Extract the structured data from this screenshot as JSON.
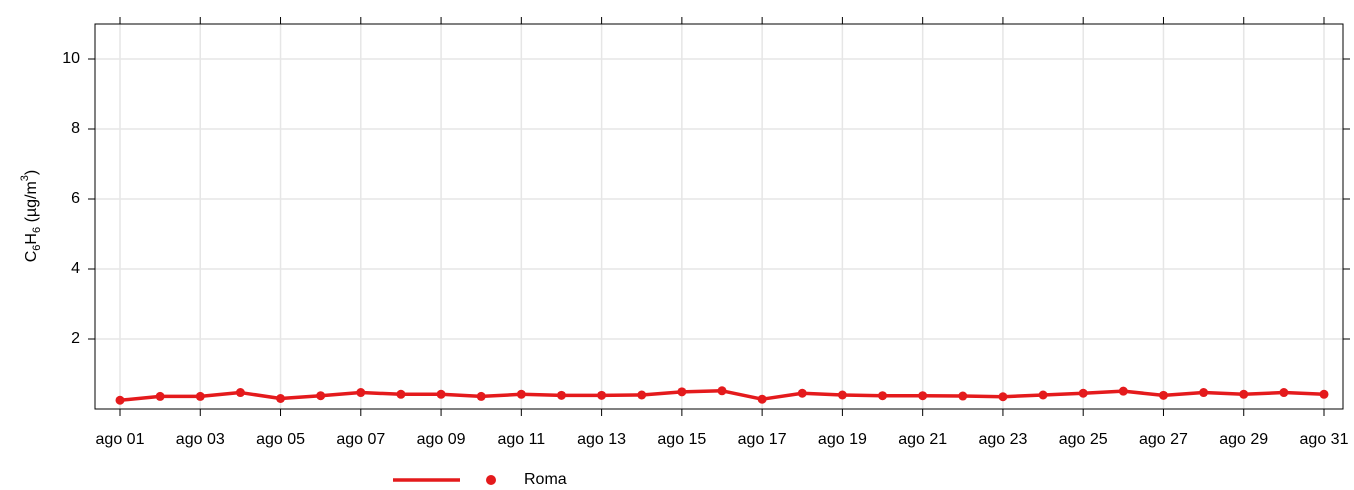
{
  "chart_data": {
    "type": "line",
    "ylabel": [
      "C",
      "6",
      "H",
      "6",
      " (µg/m",
      "3",
      ")"
    ],
    "categories": [
      "ago 01",
      null,
      "ago 03",
      null,
      "ago 05",
      null,
      "ago 07",
      null,
      "ago 09",
      null,
      "ago 11",
      null,
      "ago 13",
      null,
      "ago 15",
      null,
      "ago 17",
      null,
      "ago 19",
      null,
      "ago 21",
      null,
      "ago 23",
      null,
      "ago 25",
      null,
      "ago 27",
      null,
      "ago 29",
      null,
      "ago 31"
    ],
    "series": [
      {
        "name": "Roma",
        "color": "#e41a1c",
        "values": [
          0.25,
          0.36,
          0.36,
          0.47,
          0.3,
          0.38,
          0.47,
          0.42,
          0.42,
          0.36,
          0.42,
          0.39,
          0.39,
          0.4,
          0.49,
          0.52,
          0.28,
          0.45,
          0.4,
          0.38,
          0.38,
          0.37,
          0.35,
          0.4,
          0.45,
          0.51,
          0.39,
          0.47,
          0.42,
          0.47,
          0.42
        ]
      }
    ],
    "ylim": [
      0,
      11
    ],
    "yticks": [
      2,
      4,
      6,
      8,
      10
    ],
    "grid": true
  }
}
